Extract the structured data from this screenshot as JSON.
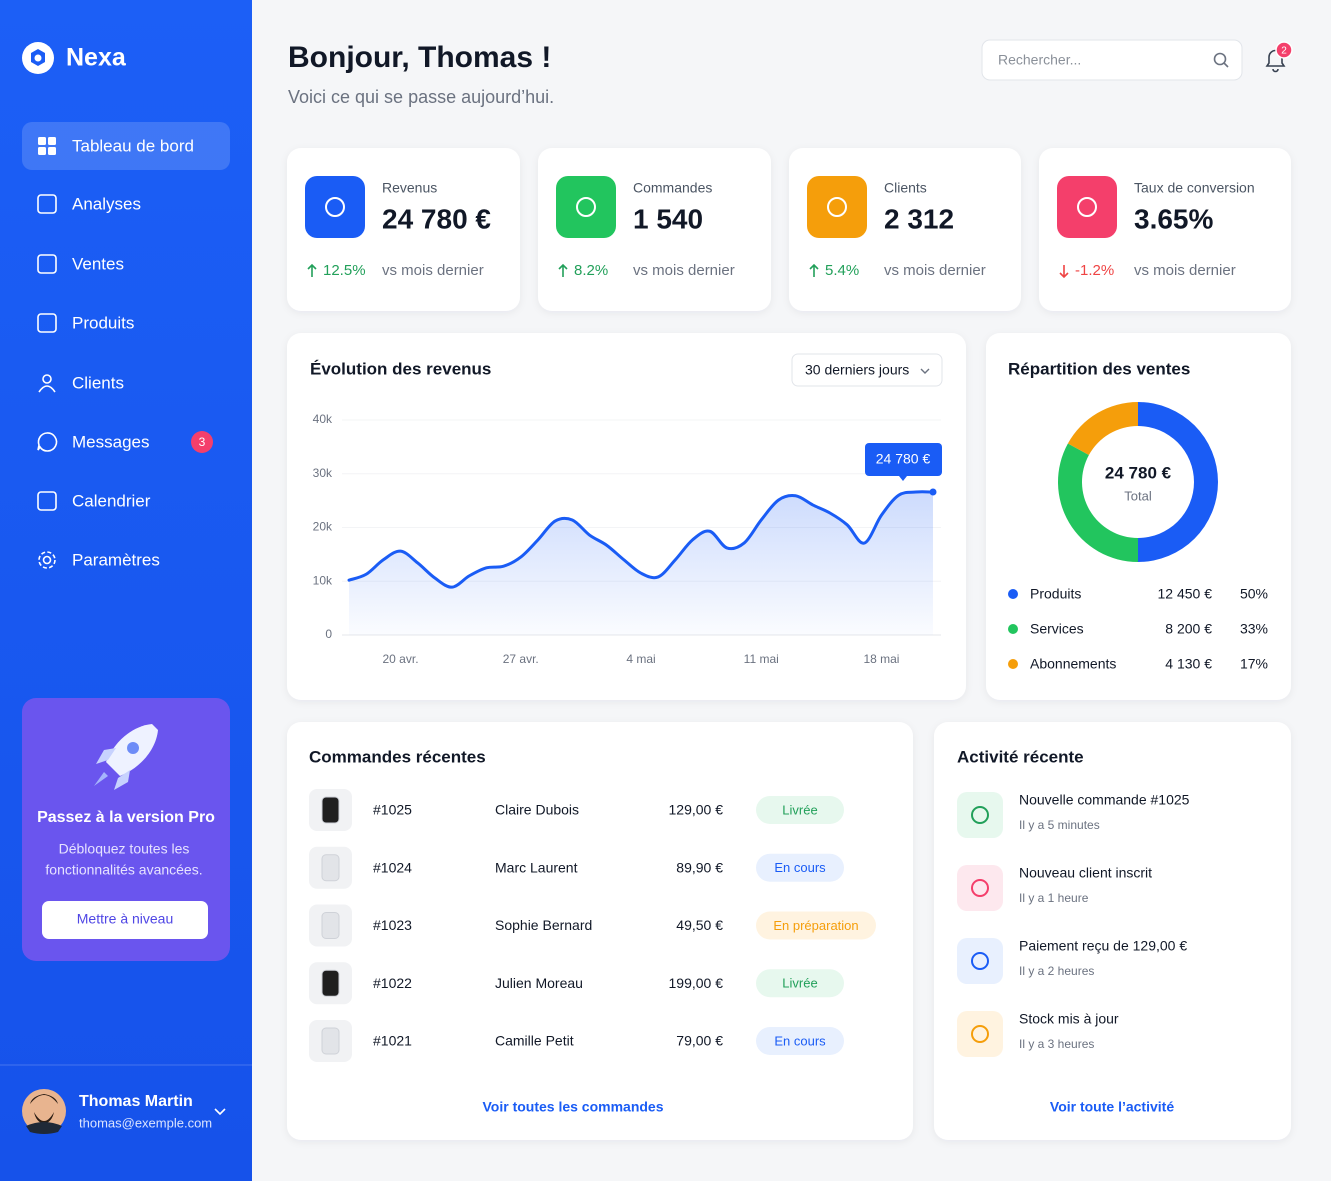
{
  "sidebar": {
    "brand": "Nexa",
    "nav": [
      {
        "label": "Tableau de bord",
        "active": true
      },
      {
        "label": "Analyses"
      },
      {
        "label": "Ventes"
      },
      {
        "label": "Produits"
      },
      {
        "label": "Clients"
      },
      {
        "label": "Messages",
        "badge": "3"
      },
      {
        "label": "Calendrier"
      },
      {
        "label": "Paramètres"
      }
    ],
    "promo": {
      "title": "Passez à la version Pro",
      "text": [
        "Débloquez toutes les",
        "fonctionnalités avancées."
      ],
      "button": "Mettre à niveau"
    },
    "user": {
      "name": "Thomas Martin",
      "email": "thomas@exemple.com"
    }
  },
  "header": {
    "title": "Bonjour, Thomas !",
    "subtitle": "Voici ce qui se passe aujourd’hui.",
    "search_placeholder": "Rechercher...",
    "notifications": "2"
  },
  "kpis": [
    {
      "label": "Revenus",
      "value": "24 780 €",
      "delta": "12.5%",
      "trend": "up",
      "note": "vs mois dernier",
      "color": "#1a5cf5"
    },
    {
      "label": "Commandes",
      "value": "1 540",
      "delta": "8.2%",
      "trend": "up",
      "note": "vs mois dernier",
      "color": "#22c55e"
    },
    {
      "label": "Clients",
      "value": "2 312",
      "delta": "5.4%",
      "trend": "up",
      "note": "vs mois dernier",
      "color": "#f59e0b"
    },
    {
      "label": "Taux de conversion",
      "value": "3.65%",
      "delta": "-1.2%",
      "trend": "down",
      "note": "vs mois dernier",
      "color": "#f43f6b"
    }
  ],
  "revenue_chart": {
    "type": "line",
    "title": "Évolution des revenus",
    "range": "30 derniers jours",
    "categories": [
      null,
      null,
      null,
      "20 avr.",
      null,
      null,
      null,
      null,
      null,
      null,
      "27 avr.",
      null,
      null,
      null,
      null,
      null,
      null,
      "4 mai",
      null,
      null,
      null,
      null,
      null,
      null,
      "11 mai",
      null,
      null,
      null,
      null,
      null,
      null,
      "18 mai",
      null,
      null,
      null
    ],
    "values": [
      10200,
      11300,
      14000,
      15600,
      13400,
      10600,
      8900,
      11000,
      12500,
      12800,
      14500,
      17700,
      21200,
      21400,
      18600,
      16700,
      14000,
      11500,
      10800,
      14000,
      17700,
      19300,
      16200,
      17100,
      21400,
      25100,
      25900,
      24200,
      22700,
      20500,
      17100,
      22300,
      26000,
      26600,
      26600
    ],
    "ylim": [
      0,
      40000
    ],
    "yticks": [
      0,
      {
        "value": 10000,
        "label": "10k"
      },
      {
        "value": 20000,
        "label": "20k"
      },
      {
        "value": 30000,
        "label": "30k"
      },
      {
        "value": 40000,
        "label": "40k"
      }
    ],
    "color": "#1a5cf5",
    "tooltip": "24 780 €"
  },
  "sales_split": {
    "type": "pie",
    "title": "Répartition des ventes",
    "total": "24 780 €",
    "total_label": "Total",
    "categories": [
      "Produits",
      "Services",
      "Abonnements"
    ],
    "values": [
      50,
      33,
      17
    ],
    "value_labels": [
      "50%",
      "33%",
      "17%"
    ],
    "amounts": [
      "12 450 €",
      "8 200 €",
      "4 130 €"
    ],
    "colors": [
      "#1a5cf5",
      "#22c55e",
      "#f59e0b"
    ]
  },
  "orders": {
    "title": "Commandes récentes",
    "link": "Voir toutes les commandes",
    "rows": [
      {
        "id": "#1025",
        "customer": "Claire Dubois",
        "amount": "129,00 €",
        "status": "Livrée",
        "tone": "green"
      },
      {
        "id": "#1024",
        "customer": "Marc Laurent",
        "amount": "89,90 €",
        "status": "En cours",
        "tone": "blue"
      },
      {
        "id": "#1023",
        "customer": "Sophie Bernard",
        "amount": "49,50 €",
        "status": "En préparation",
        "tone": "orange"
      },
      {
        "id": "#1022",
        "customer": "Julien Moreau",
        "amount": "199,00 €",
        "status": "Livrée",
        "tone": "green"
      },
      {
        "id": "#1021",
        "customer": "Camille Petit",
        "amount": "79,00 €",
        "status": "En cours",
        "tone": "blue"
      }
    ]
  },
  "activity": {
    "title": "Activité récente",
    "link": "Voir toute l’activité",
    "items": [
      {
        "title": "Nouvelle commande #1025",
        "time": "Il y a 5 minutes",
        "tone": "green"
      },
      {
        "title": "Nouveau client inscrit",
        "time": "Il y a 1 heure",
        "tone": "pink"
      },
      {
        "title": "Paiement reçu de 129,00 €",
        "time": "Il y a 2 heures",
        "tone": "blue"
      },
      {
        "title": "Stock mis à jour",
        "time": "Il y a 3 heures",
        "tone": "orange"
      }
    ]
  }
}
